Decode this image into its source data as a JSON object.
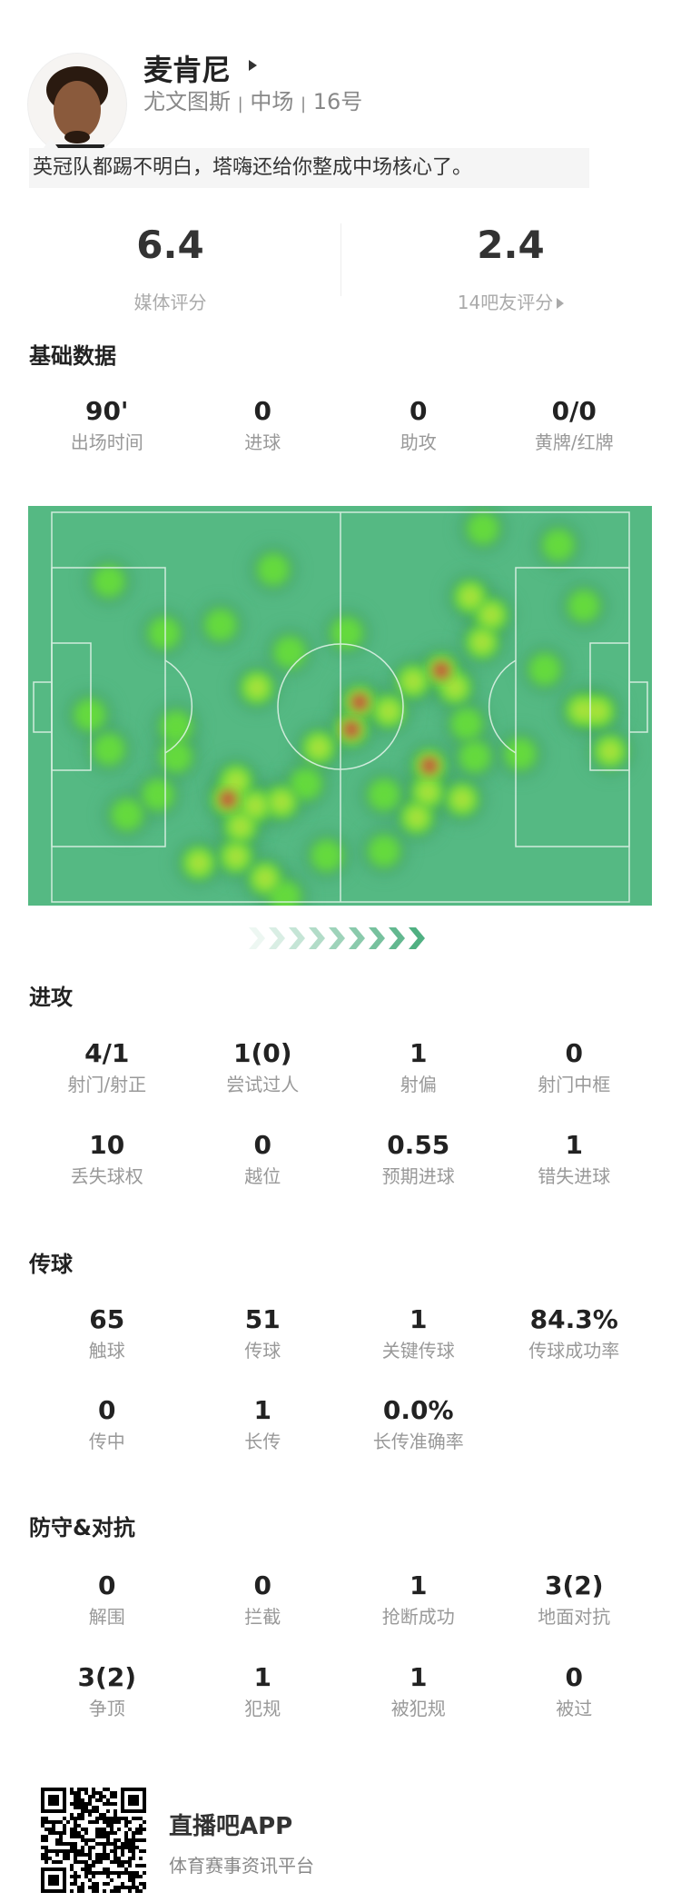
{
  "player": {
    "name": "麦肯尼",
    "team": "尤文图斯",
    "position": "中场",
    "number": "16号",
    "separator": "|",
    "comment": "英冠队都踢不明白，塔嗨还给你整成中场核心了。"
  },
  "ratings": {
    "media": {
      "value": "6.4",
      "label": "媒体评分"
    },
    "fans": {
      "value": "2.4",
      "label": "14吧友评分"
    }
  },
  "sections": {
    "basic": {
      "title": "基础数据",
      "rows": [
        [
          {
            "value": "90'",
            "label": "出场时间"
          },
          {
            "value": "0",
            "label": "进球"
          },
          {
            "value": "0",
            "label": "助攻"
          },
          {
            "value": "0/0",
            "label": "黄牌/红牌"
          }
        ]
      ]
    },
    "attack": {
      "title": "进攻",
      "rows": [
        [
          {
            "value": "4/1",
            "label": "射门/射正"
          },
          {
            "value": "1(0)",
            "label": "尝试过人"
          },
          {
            "value": "1",
            "label": "射偏"
          },
          {
            "value": "0",
            "label": "射门中框"
          }
        ],
        [
          {
            "value": "10",
            "label": "丢失球权"
          },
          {
            "value": "0",
            "label": "越位"
          },
          {
            "value": "0.55",
            "label": "预期进球"
          },
          {
            "value": "1",
            "label": "错失进球"
          }
        ]
      ]
    },
    "passing": {
      "title": "传球",
      "rows": [
        [
          {
            "value": "65",
            "label": "触球"
          },
          {
            "value": "51",
            "label": "传球"
          },
          {
            "value": "1",
            "label": "关键传球"
          },
          {
            "value": "84.3%",
            "label": "传球成功率"
          }
        ],
        [
          {
            "value": "0",
            "label": "传中"
          },
          {
            "value": "1",
            "label": "长传"
          },
          {
            "value": "0.0%",
            "label": "长传准确率"
          }
        ]
      ]
    },
    "defense": {
      "title": "防守&对抗",
      "rows": [
        [
          {
            "value": "0",
            "label": "解围"
          },
          {
            "value": "0",
            "label": "拦截"
          },
          {
            "value": "1",
            "label": "抢断成功"
          },
          {
            "value": "3(2)",
            "label": "地面对抗"
          }
        ],
        [
          {
            "value": "3(2)",
            "label": "争顶"
          },
          {
            "value": "1",
            "label": "犯规"
          },
          {
            "value": "1",
            "label": "被犯规"
          },
          {
            "value": "0",
            "label": "被过"
          }
        ]
      ]
    }
  },
  "heatmap": {
    "pitch_color": "#55b983",
    "line_color": "#e6f5ec",
    "attack_direction": "right"
  },
  "footer": {
    "app_name": "直播吧APP",
    "tagline": "体育赛事资讯平台"
  },
  "colors": {
    "accent": "#4cae7f",
    "text": "#222222",
    "muted": "#999999"
  }
}
